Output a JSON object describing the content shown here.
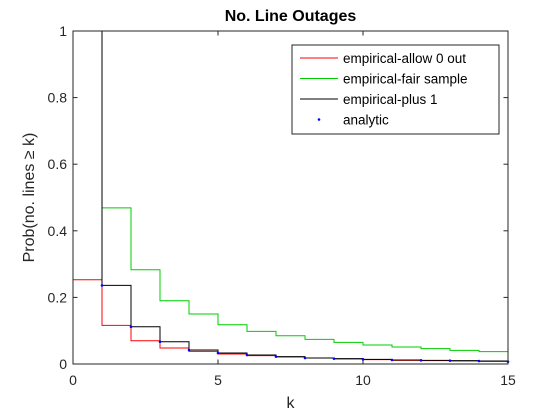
{
  "chart_data": {
    "type": "line",
    "title": "No. Line Outages",
    "xlabel": "k",
    "ylabel": "Prob(no. lines ≥ k)",
    "xlim": [
      0,
      15
    ],
    "ylim": [
      0,
      1
    ],
    "xticks": [
      0,
      5,
      10,
      15
    ],
    "yticks": [
      0,
      0.2,
      0.4,
      0.6,
      0.8,
      1
    ],
    "ytick_labels": [
      "0",
      "0.2",
      "0.4",
      "0.6",
      "0.8",
      "1"
    ],
    "legend_position": "top-right",
    "grid": false,
    "x": [
      0,
      1,
      2,
      3,
      4,
      5,
      6,
      7,
      8,
      9,
      10,
      11,
      12,
      13,
      14,
      15
    ],
    "series": [
      {
        "name": "empirical-allow 0 out",
        "style": "stairs",
        "color": "#ff0000",
        "y_at_zero": 1,
        "values": [
          0.253,
          0.116,
          0.07,
          0.048,
          0.038,
          0.03,
          0.025,
          0.021,
          0.018,
          0.015,
          0.013,
          0.011,
          0.01,
          0.009,
          0.008,
          0.007
        ]
      },
      {
        "name": "empirical-fair sample",
        "style": "stairs",
        "color": "#00cc00",
        "values": [
          null,
          0.469,
          0.283,
          0.19,
          0.15,
          0.118,
          0.098,
          0.085,
          0.074,
          0.065,
          0.057,
          0.051,
          0.046,
          0.041,
          0.037,
          0.03
        ]
      },
      {
        "name": "empirical-plus 1",
        "style": "stairs",
        "color": "#000000",
        "y_at_one": 1,
        "values": [
          null,
          0.236,
          0.112,
          0.067,
          0.042,
          0.033,
          0.027,
          0.022,
          0.018,
          0.016,
          0.014,
          0.012,
          0.011,
          0.01,
          0.009,
          0.007
        ]
      },
      {
        "name": "analytic",
        "style": "points",
        "color": "#0000ff",
        "values": [
          null,
          0.236,
          0.112,
          0.067,
          0.042,
          0.033,
          0.027,
          0.022,
          0.018,
          0.016,
          0.014,
          0.012,
          0.011,
          0.01,
          0.009,
          0.007
        ]
      }
    ]
  }
}
